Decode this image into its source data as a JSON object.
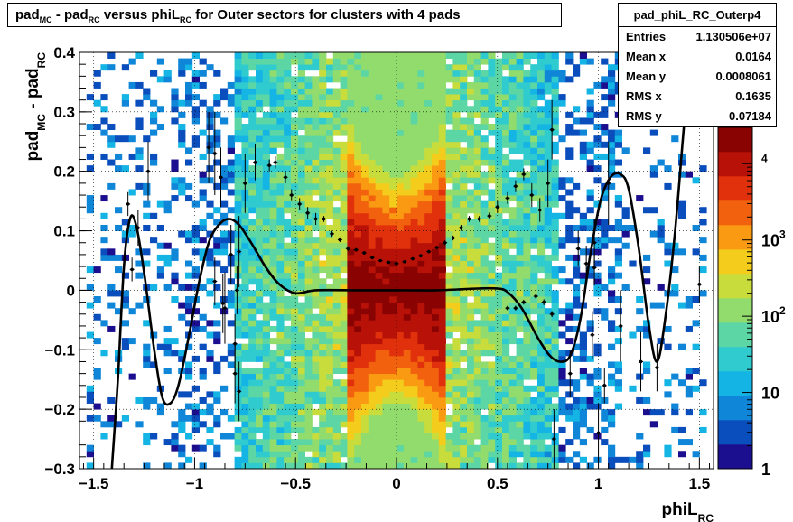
{
  "colors": {
    "palette": [
      "#1c0f8f",
      "#0a4dbc",
      "#0f86d8",
      "#14b4e4",
      "#2fcbcf",
      "#5bd6a4",
      "#91dc6c",
      "#c8dc3c",
      "#f4cc1c",
      "#f99a12",
      "#f2620e",
      "#e0300c",
      "#b81208",
      "#8a0303"
    ]
  },
  "title": {
    "parts": [
      "pad",
      "MC",
      " - pad",
      "RC",
      " versus phiL",
      "RC",
      " for Outer sectors for clusters with 4 pads"
    ]
  },
  "stats": {
    "name": "pad_phiL_RC_Outerp4",
    "rows": [
      {
        "label": "Entries",
        "value": "1.130506e+07"
      },
      {
        "label": "Mean x",
        "value": "0.0164"
      },
      {
        "label": "Mean y",
        "value": "0.0008061"
      },
      {
        "label": "RMS x",
        "value": "0.1635"
      },
      {
        "label": "RMS y",
        "value": "0.07184"
      }
    ]
  },
  "chart_data": {
    "type": "heatmap",
    "xlabel": {
      "base": "phiL",
      "sub": "RC"
    },
    "ylabel": {
      "parts": [
        "pad",
        "MC",
        " - pad",
        "RC"
      ]
    },
    "xlim": [
      -1.57,
      1.57
    ],
    "ylim": [
      -0.3,
      0.4
    ],
    "x_ticks": [
      -1.5,
      -1,
      -0.5,
      0,
      0.5,
      1,
      1.5
    ],
    "x_tick_labels": [
      "−1.5",
      "−1",
      "−0.5",
      "0",
      "0.5",
      "1",
      "1.5"
    ],
    "y_ticks": [
      -0.3,
      -0.2,
      -0.1,
      0,
      0.1,
      0.2,
      0.3,
      0.4
    ],
    "y_tick_labels": [
      "−0.3",
      "−0.2",
      "−0.1",
      "0",
      "0.1",
      "0.2",
      "0.3",
      "0.4"
    ],
    "grid": true,
    "z_scale": "log",
    "z_ticks": [
      {
        "value": 1,
        "label": "1"
      },
      {
        "value": 10,
        "label": "10"
      },
      {
        "value": 100,
        "label": "10",
        "exp": "2"
      },
      {
        "value": 1000,
        "label": "10",
        "exp": "3"
      },
      {
        "value": 10000,
        "label": "",
        "exp": "4"
      }
    ],
    "z_range": [
      1,
      30000
    ],
    "fit_curve": [
      [
        -1.41,
        -0.3
      ],
      [
        -1.38,
        -0.15
      ],
      [
        -1.35,
        0.04
      ],
      [
        -1.32,
        0.12
      ],
      [
        -1.29,
        0.11
      ],
      [
        -1.25,
        0.03
      ],
      [
        -1.2,
        -0.1
      ],
      [
        -1.16,
        -0.18
      ],
      [
        -1.12,
        -0.19
      ],
      [
        -1.08,
        -0.16
      ],
      [
        -1.03,
        -0.08
      ],
      [
        -0.98,
        0.01
      ],
      [
        -0.93,
        0.08
      ],
      [
        -0.88,
        0.11
      ],
      [
        -0.83,
        0.12
      ],
      [
        -0.78,
        0.11
      ],
      [
        -0.72,
        0.08
      ],
      [
        -0.65,
        0.04
      ],
      [
        -0.58,
        0.01
      ],
      [
        -0.5,
        -0.005
      ],
      [
        -0.4,
        0.0
      ],
      [
        -0.2,
        0.0
      ],
      [
        0.0,
        0.0
      ],
      [
        0.2,
        0.0
      ],
      [
        0.4,
        0.003
      ],
      [
        0.5,
        0.003
      ],
      [
        0.55,
        -0.003
      ],
      [
        0.62,
        -0.03
      ],
      [
        0.7,
        -0.08
      ],
      [
        0.76,
        -0.11
      ],
      [
        0.81,
        -0.12
      ],
      [
        0.86,
        -0.11
      ],
      [
        0.91,
        -0.05
      ],
      [
        0.96,
        0.06
      ],
      [
        1.01,
        0.15
      ],
      [
        1.06,
        0.19
      ],
      [
        1.11,
        0.195
      ],
      [
        1.15,
        0.17
      ],
      [
        1.2,
        0.07
      ],
      [
        1.25,
        -0.06
      ],
      [
        1.29,
        -0.12
      ],
      [
        1.33,
        -0.05
      ],
      [
        1.38,
        0.1
      ],
      [
        1.43,
        0.3
      ],
      [
        1.47,
        0.42
      ]
    ],
    "points": [
      [
        -1.33,
        0.145,
        0.02
      ],
      [
        -1.31,
        0.035,
        0.02
      ],
      [
        -1.28,
        0.105,
        0.03
      ],
      [
        -1.23,
        0.2,
        0.05
      ],
      [
        -0.93,
        0.24,
        0.06
      ],
      [
        -0.9,
        0.23,
        0.07
      ],
      [
        -0.87,
        0.19,
        0.05
      ],
      [
        -0.82,
        0.06,
        0.05
      ],
      [
        -0.78,
        0.065,
        0.06
      ],
      [
        -0.85,
        -0.03,
        0.06
      ],
      [
        -0.79,
        0.0,
        0.04
      ],
      [
        -0.75,
        0.18,
        0.05
      ],
      [
        -0.7,
        0.215,
        0.03
      ],
      [
        -0.63,
        0.21,
        0.01
      ],
      [
        -0.6,
        0.215,
        0.01
      ],
      [
        -0.55,
        0.19,
        0.01
      ],
      [
        -0.52,
        0.16,
        0.01
      ],
      [
        -0.48,
        0.145,
        0.01
      ],
      [
        -0.44,
        0.13,
        0.01
      ],
      [
        -0.4,
        0.12,
        0.01
      ],
      [
        -0.36,
        0.12,
        0.005
      ],
      [
        -0.32,
        0.095,
        0.005
      ],
      [
        -0.28,
        0.085,
        0.004
      ],
      [
        -0.24,
        0.07,
        0.004
      ],
      [
        -0.2,
        0.068,
        0.003
      ],
      [
        -0.16,
        0.063,
        0.003
      ],
      [
        -0.12,
        0.055,
        0.003
      ],
      [
        -0.08,
        0.05,
        0.002
      ],
      [
        -0.04,
        0.047,
        0.002
      ],
      [
        0.0,
        0.045,
        0.002
      ],
      [
        0.04,
        0.048,
        0.002
      ],
      [
        0.08,
        0.053,
        0.002
      ],
      [
        0.12,
        0.058,
        0.003
      ],
      [
        0.16,
        0.065,
        0.003
      ],
      [
        0.2,
        0.072,
        0.003
      ],
      [
        0.24,
        0.08,
        0.004
      ],
      [
        0.28,
        0.088,
        0.004
      ],
      [
        0.32,
        0.105,
        0.005
      ],
      [
        0.36,
        0.12,
        0.005
      ],
      [
        0.41,
        0.12,
        0.005
      ],
      [
        0.46,
        0.125,
        0.006
      ],
      [
        0.5,
        0.14,
        0.01
      ],
      [
        0.55,
        0.155,
        0.01
      ],
      [
        0.59,
        0.175,
        0.01
      ],
      [
        0.63,
        0.195,
        0.01
      ],
      [
        0.67,
        0.16,
        0.02
      ],
      [
        0.71,
        0.135,
        0.02
      ],
      [
        0.75,
        0.18,
        0.04
      ],
      [
        0.77,
        0.27,
        0.05
      ],
      [
        0.9,
        0.07,
        0.03
      ],
      [
        0.94,
        0.045,
        0.03
      ],
      [
        0.98,
        0.038,
        0.03
      ],
      [
        0.98,
        0.08,
        0.04
      ],
      [
        0.97,
        -0.075,
        0.04
      ],
      [
        1.03,
        -0.16,
        0.03
      ],
      [
        1.05,
        0.18,
        0.07
      ],
      [
        1.11,
        -0.06,
        0.06
      ],
      [
        1.21,
        -0.12,
        0.05
      ],
      [
        1.29,
        -0.13,
        0.04
      ],
      [
        1.5,
        0.01,
        0.03
      ],
      [
        -0.9,
        0.015,
        0.04
      ],
      [
        -0.86,
        -0.022,
        0.05
      ],
      [
        -0.8,
        -0.09,
        0.05
      ],
      [
        -0.8,
        -0.14,
        0.05
      ],
      [
        -0.78,
        -0.17,
        0.05
      ],
      [
        0.55,
        -0.03,
        0.004
      ],
      [
        0.59,
        -0.03,
        0.004
      ],
      [
        0.63,
        -0.02,
        0.004
      ],
      [
        0.69,
        -0.01,
        0.004
      ],
      [
        0.73,
        -0.02,
        0.005
      ],
      [
        0.77,
        -0.04,
        0.005
      ],
      [
        0.78,
        -0.25,
        0.05
      ],
      [
        0.86,
        -0.14,
        0.04
      ],
      [
        1.0,
        -0.24,
        0.05
      ]
    ]
  }
}
